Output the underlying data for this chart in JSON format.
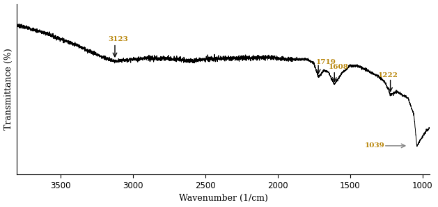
{
  "title": "",
  "xlabel": "Wavenumber (1/cm)",
  "ylabel": "Transmittance (%)",
  "xlim": [
    3800,
    950
  ],
  "bg_color": "#ffffff",
  "line_color": "#000000",
  "annotation_color": "#b8860b",
  "arrow_color": "#000000",
  "arrow_1039_color": "#808080",
  "xticks": [
    3500,
    3000,
    2500,
    2000,
    1500,
    1000
  ],
  "xlabel_fontsize": 9,
  "ylabel_fontsize": 9,
  "tick_fontsize": 8.5
}
